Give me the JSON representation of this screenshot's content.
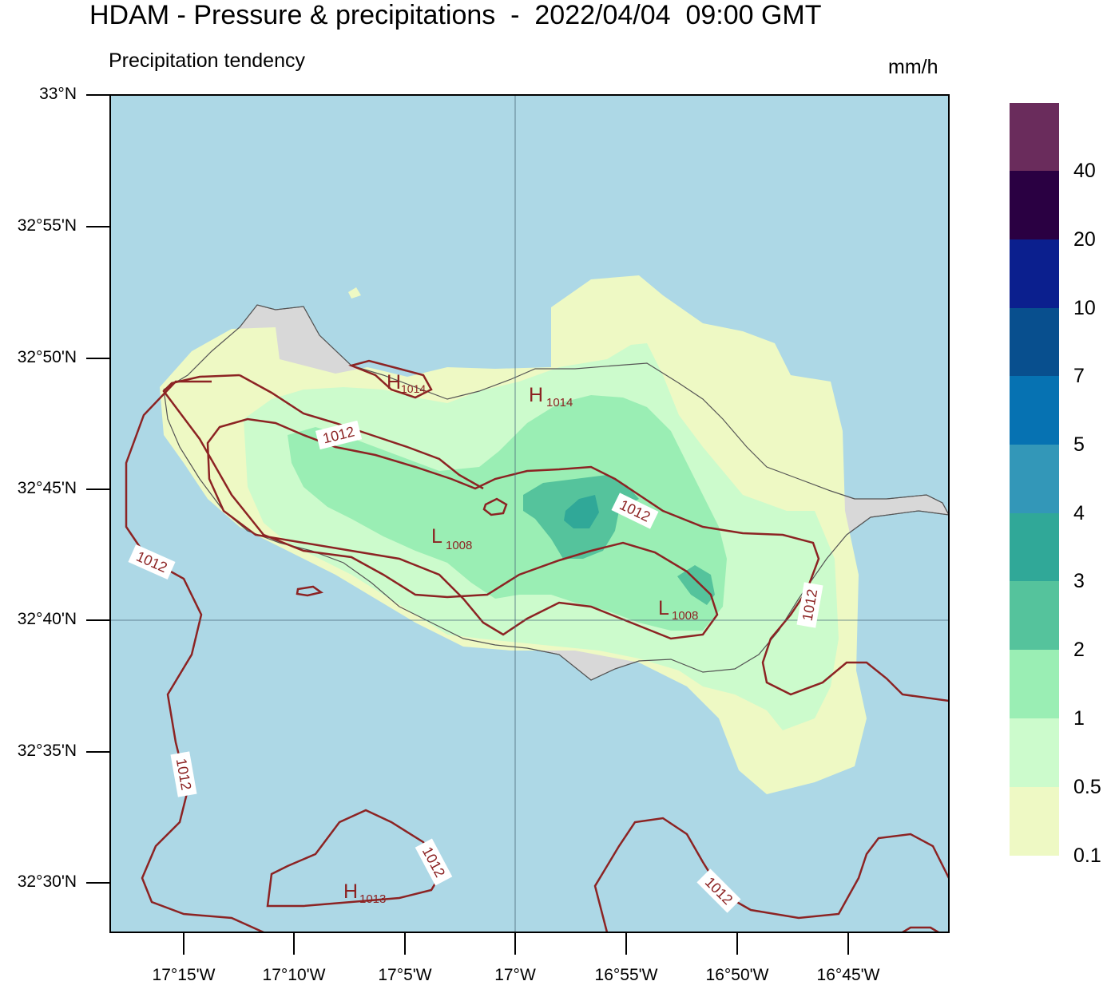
{
  "header": {
    "title": "HDAM - Pressure & precipitations  -  2022/04/04  09:00 GMT",
    "subtitle": "Precipitation tendency",
    "units": "mm/h"
  },
  "axes": {
    "lat_ticks": [
      "33°N",
      "32°55'N",
      "32°50'N",
      "32°45'N",
      "32°40'N",
      "32°35'N",
      "32°30'N"
    ],
    "lon_ticks": [
      "17°15'W",
      "17°10'W",
      "17°5'W",
      "17°W",
      "16°55'W",
      "16°50'W",
      "16°45'W"
    ]
  },
  "colorbar": {
    "labels": [
      "0.1",
      "0.5",
      "1",
      "2",
      "3",
      "4",
      "5",
      "7",
      "10",
      "20",
      "40"
    ],
    "colors": [
      "#eef9c4",
      "#ccfbcc",
      "#9aeeb4",
      "#55c39c",
      "#30a898",
      "#3397b8",
      "#0672b2",
      "#084f8e",
      "#0b1f8e",
      "#2a0042",
      "#6a2c5c"
    ]
  },
  "isobars": {
    "labels": [
      "1012",
      "1012",
      "1012",
      "1012",
      "1012",
      "1012",
      "1012"
    ],
    "centers": [
      {
        "letter": "H",
        "value": "1014"
      },
      {
        "letter": "H",
        "value": "1014"
      },
      {
        "letter": "L",
        "value": "1008"
      },
      {
        "letter": "L",
        "value": "1008"
      },
      {
        "letter": "H",
        "value": "1013"
      }
    ]
  },
  "colors": {
    "sea": "#add8e6",
    "land": "#d8d8d8",
    "isobar": "#8c2323",
    "coast": "#555555"
  }
}
